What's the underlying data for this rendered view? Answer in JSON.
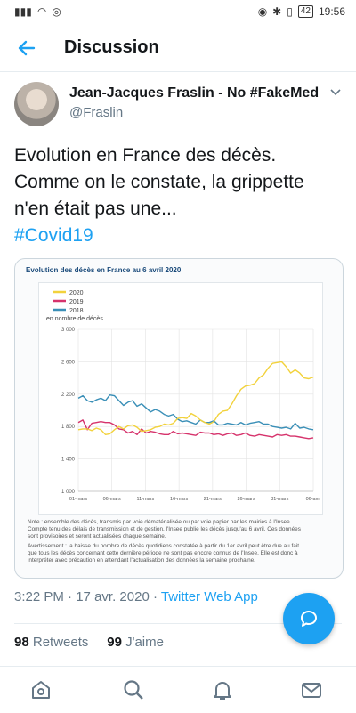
{
  "status": {
    "time": "19:56",
    "battery": "42"
  },
  "appbar": {
    "back_icon": "arrow-left-icon",
    "title": "Discussion"
  },
  "tweet": {
    "author_name": "Jean-Jacques Fraslin - No #FakeMed",
    "handle": "@Fraslin",
    "text": "Evolution en France des décès. Comme on le constate, la grippette n'en était pas une...",
    "hashtag": "#Covid19",
    "time": "3:22 PM",
    "date": "17 avr. 2020",
    "source": "Twitter Web App",
    "retweets": "98",
    "retweets_label": "Retweets",
    "likes": "99",
    "likes_label": "J'aime"
  },
  "chart_data": {
    "type": "line",
    "title": "Evolution des décès en France au 6 avril 2020",
    "ylabel": "en nombre de décès",
    "ylim": [
      1000,
      3000
    ],
    "yticks": [
      "3 000",
      "2 600",
      "2 200",
      "1 800",
      "1 400",
      "1 000"
    ],
    "xticks": [
      "01-mars",
      "06-mars",
      "11-mars",
      "16-mars",
      "21-mars",
      "26-mars",
      "31-mars",
      "06-avr."
    ],
    "legend_position": "top-left",
    "grid": true,
    "series": [
      {
        "name": "2020",
        "color": "#f2d23c",
        "values": [
          1760,
          1770,
          1770,
          1750,
          1780,
          1760,
          1700,
          1710,
          1760,
          1800,
          1770,
          1810,
          1820,
          1790,
          1740,
          1750,
          1760,
          1790,
          1800,
          1830,
          1820,
          1840,
          1900,
          1910,
          1900,
          1960,
          1930,
          1880,
          1850,
          1830,
          1860,
          1950,
          1990,
          2000,
          2080,
          2180,
          2260,
          2300,
          2310,
          2330,
          2400,
          2440,
          2520,
          2580,
          2590,
          2600,
          2540,
          2460,
          2500,
          2460,
          2400,
          2390,
          2410
        ]
      },
      {
        "name": "2019",
        "color": "#d6336c",
        "values": [
          1850,
          1880,
          1760,
          1840,
          1850,
          1860,
          1850,
          1850,
          1820,
          1770,
          1760,
          1720,
          1740,
          1700,
          1770,
          1720,
          1740,
          1730,
          1710,
          1700,
          1700,
          1740,
          1710,
          1720,
          1710,
          1700,
          1690,
          1730,
          1720,
          1720,
          1700,
          1710,
          1690,
          1710,
          1720,
          1690,
          1700,
          1720,
          1690,
          1680,
          1700,
          1690,
          1680,
          1670,
          1700,
          1690,
          1700,
          1680,
          1680,
          1670,
          1660,
          1650,
          1660
        ]
      },
      {
        "name": "2018",
        "color": "#3a8fb7",
        "values": [
          2150,
          2180,
          2120,
          2100,
          2130,
          2150,
          2120,
          2190,
          2180,
          2120,
          2060,
          2100,
          2120,
          2050,
          2080,
          2030,
          1980,
          2010,
          1990,
          1950,
          1930,
          1950,
          1890,
          1860,
          1870,
          1850,
          1830,
          1880,
          1850,
          1850,
          1870,
          1820,
          1820,
          1840,
          1830,
          1820,
          1850,
          1820,
          1840,
          1850,
          1860,
          1830,
          1830,
          1800,
          1790,
          1780,
          1790,
          1770,
          1840,
          1780,
          1790,
          1770,
          1760
        ]
      }
    ]
  },
  "chart_note": [
    "Note : ensemble des décès, transmis par voie dématérialisée ou par voie papier par les mairies à l'Insee.",
    "Compte tenu des délais de transmission et de gestion, l'Insee publie les décès jusqu'au 6 avril. Ces données",
    "sont provisoires et seront actualisées chaque semaine.",
    "Avertissement : la baisse du nombre de décès quotidiens constatée à partir du 1er avril peut être due au fait",
    "que tous les décès concernant cette dernière période ne sont pas encore connus de l'Insee. Elle est donc à",
    "interpréter avec précaution en attendant l'actualisation des données la semaine prochaine."
  ],
  "nav": [
    "home-icon",
    "search-icon",
    "notifications-bell-icon",
    "messages-envelope-icon"
  ],
  "fab_icon": "reply-bubble-icon",
  "colors": {
    "accent": "#1da1f2",
    "text": "#14171a",
    "muted": "#657786"
  }
}
